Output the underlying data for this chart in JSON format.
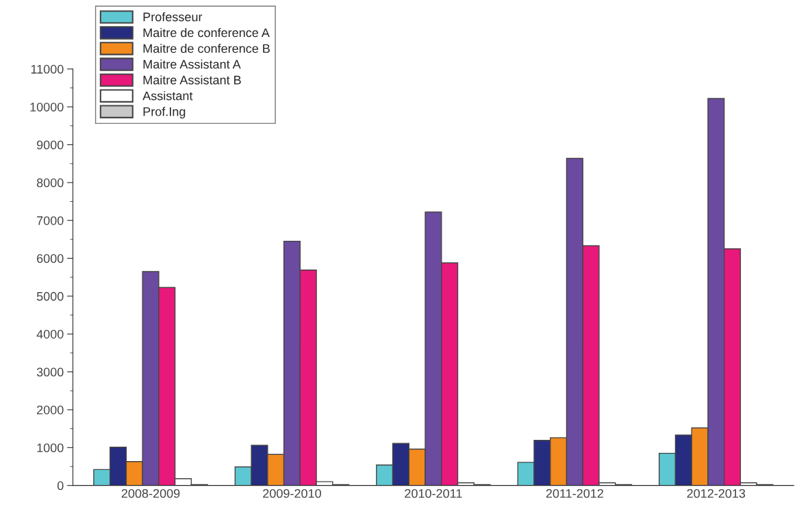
{
  "chart_data": {
    "type": "bar",
    "categories": [
      "2008-2009",
      "2009-2010",
      "2010-2011",
      "2011-2012",
      "2012-2013"
    ],
    "series": [
      {
        "name": "Professeur",
        "color": "#5ec8d2",
        "values": [
          420,
          490,
          540,
          610,
          850
        ]
      },
      {
        "name": "Maitre de conference A",
        "color": "#262d80",
        "values": [
          1010,
          1060,
          1110,
          1190,
          1330
        ]
      },
      {
        "name": "Maitre de conference B",
        "color": "#f28a1e",
        "values": [
          630,
          820,
          960,
          1260,
          1520
        ]
      },
      {
        "name": "Maitre Assistant A",
        "color": "#6a4ba0",
        "values": [
          5650,
          6450,
          7220,
          8640,
          10220
        ]
      },
      {
        "name": "Maitre Assistant B",
        "color": "#e8197a",
        "values": [
          5230,
          5690,
          5880,
          6330,
          6250
        ]
      },
      {
        "name": "Assistant",
        "color": "#ffffff",
        "values": [
          180,
          100,
          70,
          70,
          70
        ]
      },
      {
        "name": "Prof.Ing",
        "color": "#c8c8c8",
        "values": [
          20,
          20,
          20,
          20,
          20
        ]
      }
    ],
    "ylim": [
      0,
      11000
    ],
    "yticks": [
      0,
      {
        "value": 500,
        "label": null
      },
      1000,
      {
        "value": 1500,
        "label": null
      },
      2000,
      {
        "value": 2500,
        "label": null
      },
      3000,
      {
        "value": 3500,
        "label": null
      },
      4000,
      {
        "value": 4500,
        "label": null
      },
      5000,
      {
        "value": 5500,
        "label": null
      },
      6000,
      {
        "value": 6500,
        "label": null
      },
      7000,
      {
        "value": 7500,
        "label": null
      },
      8000,
      {
        "value": 8500,
        "label": null
      },
      9000,
      {
        "value": 9500,
        "label": null
      },
      10000,
      {
        "value": 10500,
        "label": null
      },
      11000
    ],
    "grid": false,
    "legend": "top left"
  }
}
